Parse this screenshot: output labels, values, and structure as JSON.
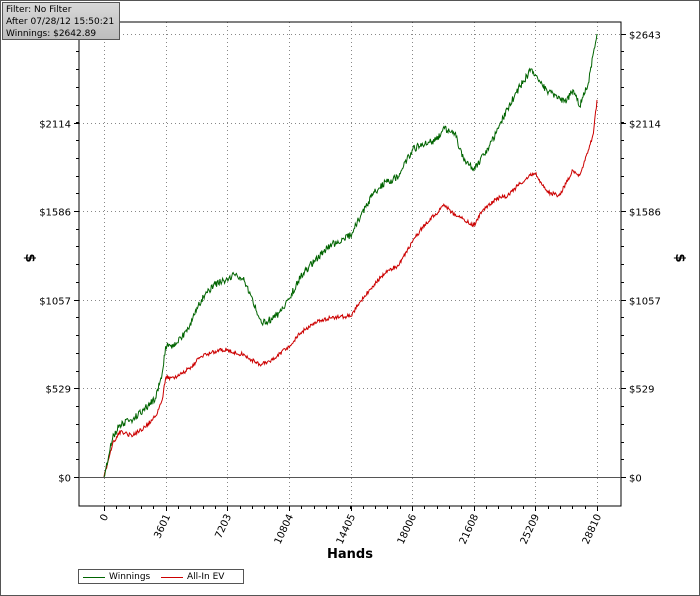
{
  "info": {
    "filter": "Filter: No Filter",
    "after": "After 07/28/12 15:50:21",
    "winnings": "Winnings: $2642.89"
  },
  "chart_data": {
    "type": "line",
    "xlabel": "Hands",
    "ylabel": "$",
    "x_ticks": [
      "0",
      "3601",
      "7203",
      "10804",
      "14405",
      "18006",
      "21608",
      "25209",
      "28810"
    ],
    "y_ticks_left": [
      "$0",
      "$529",
      "$1057",
      "$1586",
      "$2114"
    ],
    "y_ticks_right": [
      "$0",
      "$529",
      "$1057",
      "$1586",
      "$2114",
      "$2643"
    ],
    "xlim": [
      0,
      28810
    ],
    "ylim": [
      0,
      2643
    ],
    "grid": true,
    "legend_position": "bottom-left",
    "series": [
      {
        "name": "Winnings",
        "color": "#006400",
        "x": [
          0,
          500,
          900,
          1600,
          2300,
          3000,
          3400,
          3601,
          4300,
          5000,
          5700,
          6500,
          7203,
          7700,
          8200,
          8600,
          9200,
          10000,
          10804,
          11500,
          12300,
          13200,
          14405,
          15000,
          15800,
          16500,
          17200,
          18006,
          18600,
          19300,
          19900,
          20500,
          21000,
          21608,
          22200,
          22900,
          23600,
          24300,
          24900,
          25209,
          25900,
          26600,
          27000,
          27400,
          27800,
          28300,
          28600,
          28810
        ],
        "y": [
          0,
          230,
          310,
          340,
          400,
          470,
          620,
          780,
          800,
          900,
          1060,
          1150,
          1180,
          1210,
          1170,
          1080,
          920,
          950,
          1060,
          1200,
          1290,
          1380,
          1440,
          1560,
          1700,
          1760,
          1790,
          1950,
          1990,
          2000,
          2080,
          2050,
          1900,
          1830,
          1920,
          2050,
          2200,
          2330,
          2420,
          2400,
          2300,
          2270,
          2230,
          2310,
          2210,
          2350,
          2530,
          2643
        ]
      },
      {
        "name": "All-In EV",
        "color": "#cc0000",
        "x": [
          0,
          500,
          900,
          1600,
          2300,
          3000,
          3400,
          3601,
          4300,
          5000,
          5700,
          6500,
          7203,
          7700,
          8200,
          8600,
          9200,
          10000,
          10804,
          11500,
          12300,
          13200,
          14405,
          15000,
          15800,
          16500,
          17200,
          18006,
          18600,
          19300,
          19900,
          20500,
          21000,
          21608,
          22200,
          22900,
          23600,
          24300,
          24900,
          25209,
          25900,
          26600,
          27000,
          27400,
          27800,
          28300,
          28600,
          28810
        ],
        "y": [
          0,
          200,
          270,
          250,
          290,
          360,
          460,
          590,
          600,
          650,
          720,
          750,
          760,
          740,
          730,
          700,
          670,
          710,
          780,
          860,
          920,
          950,
          960,
          1050,
          1150,
          1230,
          1260,
          1400,
          1490,
          1560,
          1620,
          1560,
          1540,
          1500,
          1600,
          1660,
          1680,
          1750,
          1800,
          1810,
          1700,
          1680,
          1750,
          1830,
          1800,
          1950,
          2050,
          2250
        ]
      }
    ]
  }
}
